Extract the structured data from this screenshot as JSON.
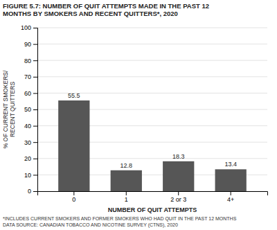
{
  "chart_data": {
    "type": "bar",
    "title": "FIGURE 5.7: NUMBER OF QUIT ATTEMPTS MADE IN THE PAST 12\nMONTHS BY SMOKERS AND RECENT QUITTERS*, 2020",
    "categories": [
      "0",
      "1",
      "2 or 3",
      "4+"
    ],
    "values": [
      55.5,
      12.8,
      18.3,
      13.4
    ],
    "color": "#565656",
    "xlabel": "NUMBER OF QUIT ATTEMPTS",
    "ylabel": "% OF CURRENT SMOKERS/\nRECENT QUITTERS",
    "ylim": [
      0,
      100
    ],
    "yticks": [
      0,
      10,
      20,
      30,
      40,
      50,
      60,
      70,
      80,
      90,
      100
    ],
    "grid": true,
    "data_labels": true,
    "footnote": "*INCLUDES CURRENT SMOKERS AND FORMER SMOKERS WHO HAD QUIT IN THE PAST 12 MONTHS\nDATA SOURCE: CANADIAN TOBACCO AND NICOTINE SURVEY (CTNS), 2020"
  }
}
